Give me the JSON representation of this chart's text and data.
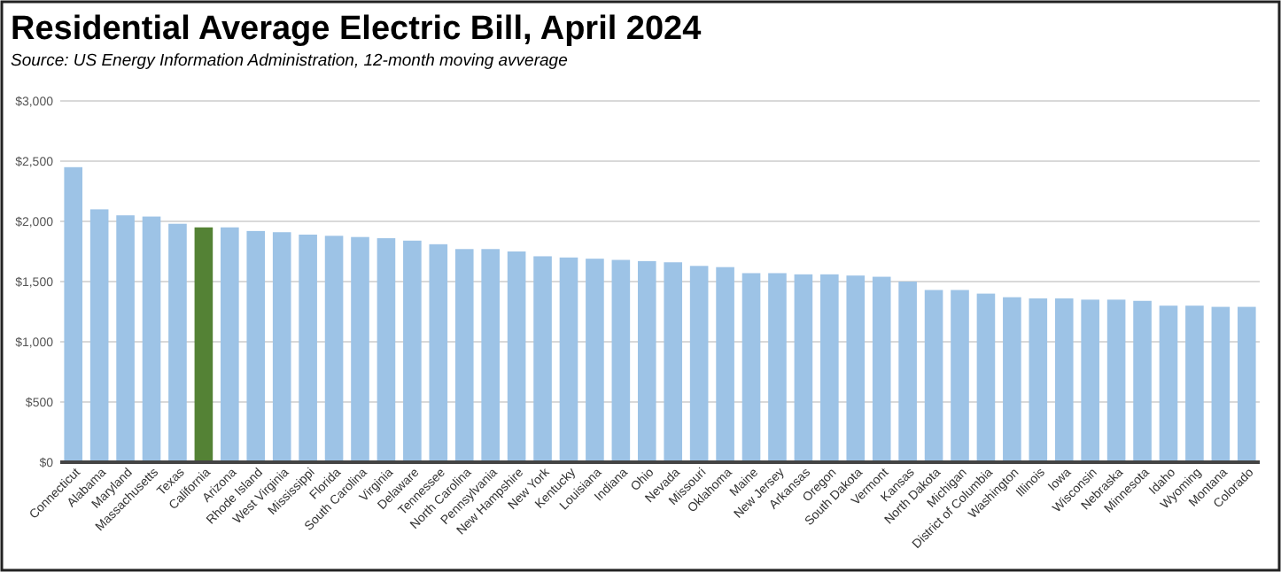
{
  "chart_data": {
    "type": "bar",
    "title": "Residential Average Electric Bill, April 2024",
    "subtitle": "Source:  US Energy Information Administration, 12-month moving avverage",
    "categories": [
      "Connecticut",
      "Alabama",
      "Maryland",
      "Massachusetts",
      "Texas",
      "California",
      "Arizona",
      "Rhode Island",
      "West Virginia",
      "Mississippi",
      "Florida",
      "South Carolina",
      "Virginia",
      "Delaware",
      "Tennessee",
      "North Carolina",
      "Pennsylvania",
      "New Hampshire",
      "New York",
      "Kentucky",
      "Louisiana",
      "Indiana",
      "Ohio",
      "Nevada",
      "Missouri",
      "Oklahoma",
      "Maine",
      "New Jersey",
      "Arkansas",
      "Oregon",
      "South Dakota",
      "Vermont",
      "Kansas",
      "North Dakota",
      "Michigan",
      "District of Columbia",
      "Washington",
      "Illinois",
      "Iowa",
      "Wisconsin",
      "Nebraska",
      "Minnesota",
      "Idaho",
      "Wyoming",
      "Montana",
      "Colorado"
    ],
    "values": [
      2450,
      2100,
      2050,
      2040,
      1980,
      1950,
      1950,
      1920,
      1910,
      1890,
      1880,
      1870,
      1860,
      1840,
      1810,
      1770,
      1770,
      1750,
      1710,
      1700,
      1690,
      1680,
      1670,
      1660,
      1630,
      1620,
      1570,
      1570,
      1560,
      1560,
      1550,
      1540,
      1500,
      1430,
      1430,
      1400,
      1370,
      1360,
      1360,
      1350,
      1350,
      1340,
      1300,
      1300,
      1290,
      1290
    ],
    "colors": [
      "#9dc3e6",
      "#9dc3e6",
      "#9dc3e6",
      "#9dc3e6",
      "#9dc3e6",
      "#548235",
      "#9dc3e6",
      "#9dc3e6",
      "#9dc3e6",
      "#9dc3e6",
      "#9dc3e6",
      "#9dc3e6",
      "#9dc3e6",
      "#9dc3e6",
      "#9dc3e6",
      "#9dc3e6",
      "#9dc3e6",
      "#9dc3e6",
      "#9dc3e6",
      "#9dc3e6",
      "#9dc3e6",
      "#9dc3e6",
      "#9dc3e6",
      "#9dc3e6",
      "#9dc3e6",
      "#9dc3e6",
      "#9dc3e6",
      "#9dc3e6",
      "#9dc3e6",
      "#9dc3e6",
      "#9dc3e6",
      "#9dc3e6",
      "#9dc3e6",
      "#9dc3e6",
      "#9dc3e6",
      "#9dc3e6",
      "#9dc3e6",
      "#9dc3e6",
      "#9dc3e6",
      "#9dc3e6",
      "#9dc3e6",
      "#9dc3e6",
      "#9dc3e6",
      "#9dc3e6",
      "#9dc3e6",
      "#9dc3e6"
    ],
    "ylim": [
      0,
      3000
    ],
    "yticks": [
      {
        "value": 0,
        "label": "$0"
      },
      {
        "value": 500,
        "label": "$500"
      },
      {
        "value": 1000,
        "label": "$1,000"
      },
      {
        "value": 1500,
        "label": "$1,500"
      },
      {
        "value": 2000,
        "label": "$2,000"
      },
      {
        "value": 2500,
        "label": "$2,500"
      },
      {
        "value": 3000,
        "label": "$3,000"
      }
    ],
    "grid": "y"
  }
}
